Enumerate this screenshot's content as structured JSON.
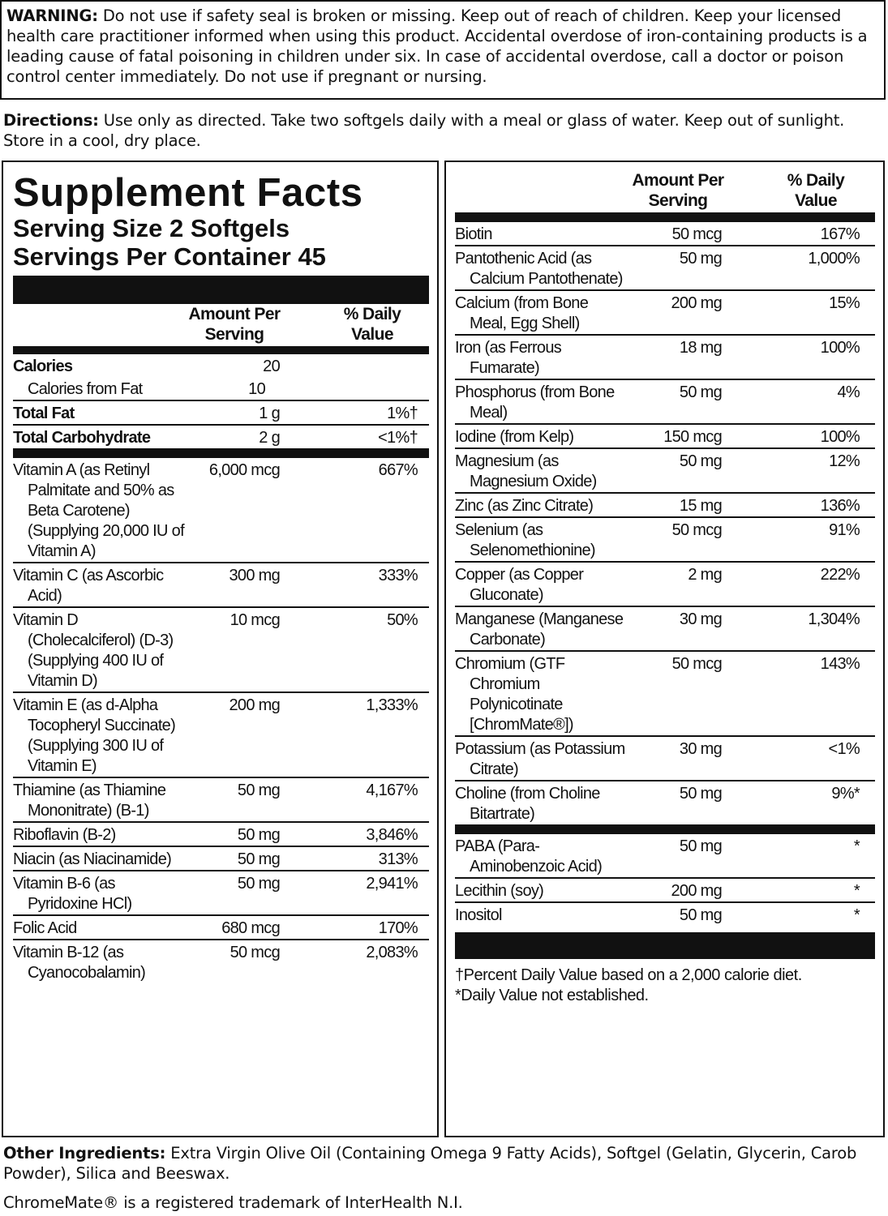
{
  "warning": {
    "label": "WARNING:",
    "text": "Do not use if safety seal is broken or missing. Keep out of reach of children. Keep your licensed health care practitioner informed when using this product. Accidental overdose of iron-containing products is a leading cause of fatal poisoning in children under six. In case of accidental overdose, call a doctor or poison control center immediately. Do not use if pregnant or nursing."
  },
  "directions": {
    "label": "Directions:",
    "text": "Use only as directed. Take two softgels daily with a meal or glass of water. Keep out of sunlight. Store in a cool, dry place."
  },
  "facts": {
    "title": "Supplement Facts",
    "serving_size": "Serving Size 2 Softgels",
    "servings_per_container": "Servings Per Container 45",
    "left": {
      "columns": [
        "Amount Per Serving",
        "% Daily Value"
      ],
      "sections": [
        [
          [
            "Calories",
            "20"
          ],
          [
            "Calories from Fat",
            "10"
          ],
          [
            "Total Fat",
            "1 g",
            "1%†"
          ],
          [
            "Total Carbohydrate",
            "2 g",
            "<1%†"
          ]
        ],
        [
          [
            "Vitamin A (as Retinyl Palmitate and 50% as Beta Carotene) (Supplying 20,000 IU of Vitamin A)",
            "6,000 mcg",
            "667%"
          ],
          [
            "Vitamin C (as Ascorbic Acid)",
            "300 mg",
            "333%"
          ],
          [
            "Vitamin D (Cholecalciferol) (D-3) (Supplying 400 IU of Vitamin D)",
            "10 mcg",
            "50%"
          ],
          [
            "Vitamin E (as d-Alpha Tocopheryl Succinate) (Supplying 300 IU of Vitamin E)",
            "200 mg",
            "1,333%"
          ],
          [
            "Thiamine (as Thiamine Mononitrate) (B-1)",
            "50 mg",
            "4,167%"
          ],
          [
            "Riboflavin (B-2)",
            "50 mg",
            "3,846%"
          ],
          [
            "Niacin (as Niacinamide)",
            "50 mg",
            "313%"
          ],
          [
            "Vitamin B-6 (as Pyridoxine HCl)",
            "50 mg",
            "2,941%"
          ],
          [
            "Folic Acid",
            "680 mcg",
            "170%"
          ],
          [
            "Vitamin B-12 (as Cyanocobalamin)",
            "50 mcg",
            "2,083%"
          ]
        ]
      ]
    },
    "right": {
      "columns": [
        "Amount Per Serving",
        "% Daily Value"
      ],
      "sections": [
        [
          [
            "Biotin",
            "50 mcg",
            "167%"
          ],
          [
            "Pantothenic Acid (as Calcium Pantothenate)",
            "50 mg",
            "1,000%"
          ],
          [
            "Calcium (from Bone Meal, Egg Shell)",
            "200 mg",
            "15%"
          ],
          [
            "Iron (as Ferrous Fumarate)",
            "18 mg",
            "100%"
          ],
          [
            "Phosphorus (from Bone Meal)",
            "50 mg",
            "4%"
          ],
          [
            "Iodine (from Kelp)",
            "150 mcg",
            "100%"
          ],
          [
            "Magnesium (as Magnesium Oxide)",
            "50 mg",
            "12%"
          ],
          [
            "Zinc (as Zinc Citrate)",
            "15 mg",
            "136%"
          ],
          [
            "Selenium (as Selenomethionine)",
            "50 mcg",
            "91%"
          ],
          [
            "Copper (as Copper Gluconate)",
            "2 mg",
            "222%"
          ],
          [
            "Manganese (Manganese Carbonate)",
            "30 mg",
            "1,304%"
          ],
          [
            "Chromium (GTF Chromium Polynicotinate [ChromMate®])",
            "50 mcg",
            "143%"
          ],
          [
            "Potassium (as Potassium Citrate)",
            "30 mg",
            "<1%"
          ],
          [
            "Choline (from Choline Bitartrate)",
            "50 mg",
            "9%*"
          ]
        ],
        [
          [
            "PABA (Para-Aminobenzoic Acid)",
            "50 mg",
            "*"
          ],
          [
            "Lecithin (soy)",
            "200 mg",
            "*"
          ],
          [
            "Inositol",
            "50 mg",
            "*"
          ]
        ]
      ]
    },
    "footnotes": [
      "†Percent Daily Value based on a 2,000 calorie diet.",
      "*Daily Value not established."
    ]
  },
  "other_ingredients": {
    "label": "Other Ingredients:",
    "text": "Extra Virgin Olive Oil (Containing Omega 9 Fatty Acids), Softgel (Gelatin, Glycerin, Carob Powder), Silica and Beeswax."
  },
  "trademark": "ChromeMate® is a registered trademark of InterHealth N.I."
}
